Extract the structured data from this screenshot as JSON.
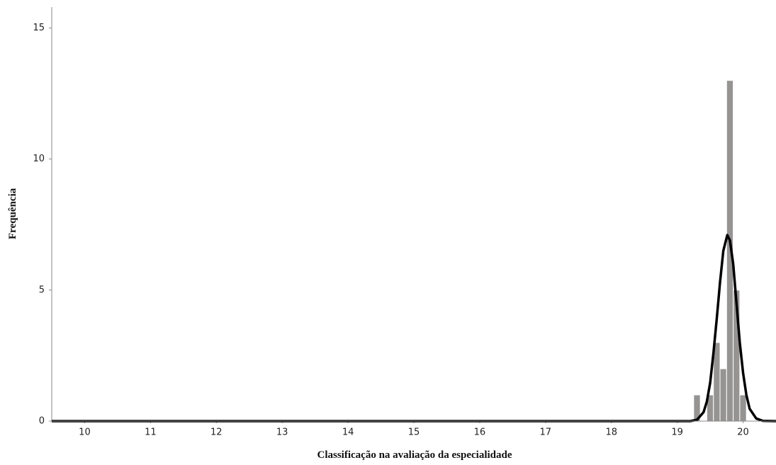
{
  "chart_data": {
    "type": "histogram",
    "x_label": "Classificação na avaliação da especialidade",
    "y_label": "Frequência",
    "bins": [
      19.25,
      19.35,
      19.45,
      19.55,
      19.65,
      19.75,
      19.85,
      19.95,
      20.05
    ],
    "values": [
      1,
      0,
      1,
      3,
      2,
      13,
      5,
      1
    ],
    "color": "#969393",
    "curve": {
      "color": "#000000",
      "x": [
        9.5,
        19.2,
        19.3,
        19.4,
        19.45,
        19.5,
        19.55,
        19.6,
        19.65,
        19.7,
        19.76,
        19.8,
        19.85,
        19.9,
        19.95,
        20.0,
        20.05,
        20.1,
        20.2,
        20.3,
        20.5
      ],
      "y": [
        0,
        0,
        0.05,
        0.34,
        0.75,
        1.46,
        2.6,
        3.9,
        5.3,
        6.5,
        7.1,
        6.9,
        6.0,
        4.5,
        3.0,
        1.84,
        1.0,
        0.47,
        0.1,
        0.01,
        0
      ]
    },
    "xlim": [
      9.5,
      20.5
    ],
    "xticks": [
      10,
      11,
      12,
      13,
      14,
      15,
      16,
      17,
      18,
      19,
      20
    ],
    "ylim": [
      0,
      15.8
    ],
    "yticks": [
      0,
      5,
      10,
      15
    ],
    "grid": false
  }
}
